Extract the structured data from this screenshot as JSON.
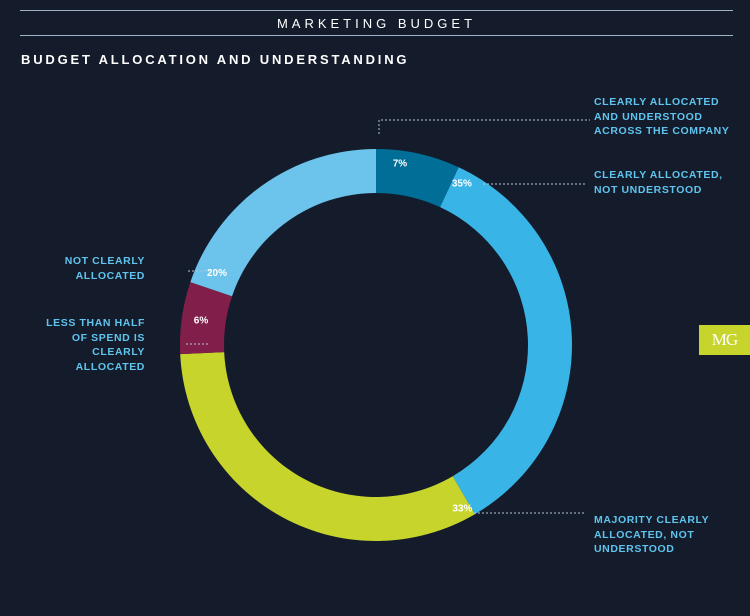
{
  "header": {
    "title": "MARKETING BUDGET"
  },
  "subtitle": "BUDGET ALLOCATION AND UNDERSTANDING",
  "badge": "MG",
  "chart_data": {
    "type": "pie",
    "donut": true,
    "title": "BUDGET ALLOCATION AND UNDERSTANDING",
    "categories": [
      "CLEARLY ALLOCATED AND UNDERSTOOD ACROSS THE COMPANY",
      "CLEARLY ALLOCATED, NOT UNDERSTOOD",
      "MAJORITY CLEARLY ALLOCATED, NOT UNDERSTOOD",
      "LESS THAN HALF OF SPEND IS CLEARLY ALLOCATED",
      "NOT CLEARLY ALLOCATED"
    ],
    "values": [
      7,
      35,
      33,
      6,
      20
    ],
    "value_labels": [
      "7%",
      "35%",
      "33%",
      "6%",
      "20%"
    ],
    "colors": [
      "#006e96",
      "#38b4e6",
      "#c6d42c",
      "#821e4a",
      "#6cc4ec"
    ],
    "legend": "callout labels around the ring",
    "labels_display": [
      "CLEARLY ALLOCATED\nAND UNDERSTOOD\nACROSS THE COMPANY",
      "CLEARLY ALLOCATED,\nNOT UNDERSTOOD",
      "MAJORITY CLEARLY\nALLOCATED, NOT\nUNDERSTOOD",
      "LESS THAN HALF\nOF SPEND IS\nCLEARLY\nALLOCATED",
      "NOT CLEARLY\nALLOCATED"
    ]
  }
}
